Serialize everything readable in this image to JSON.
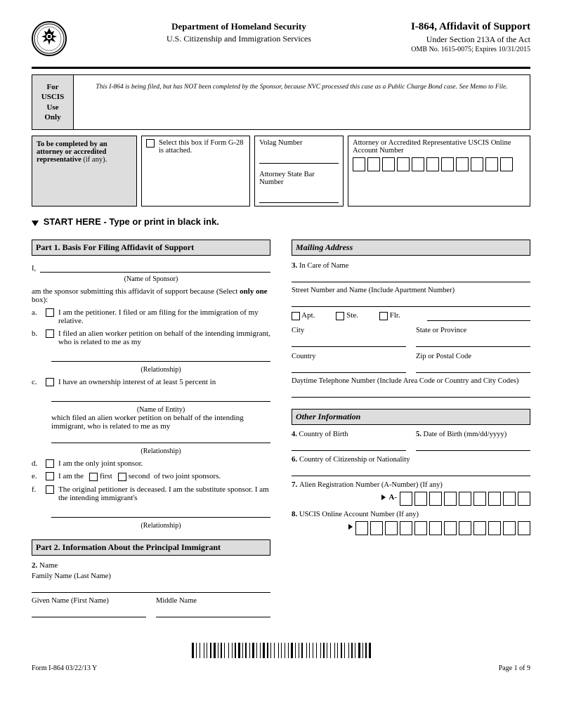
{
  "header": {
    "department": "Department of Homeland Security",
    "agency": "U.S. Citizenship and Immigration Services",
    "form_title": "I-864, Affidavit of Support",
    "form_sub": "Under Section 213A of the Act",
    "omb": "OMB No. 1615-0075; Expires 10/31/2015"
  },
  "uscis_box": {
    "line1": "For",
    "line2": "USCIS",
    "line3": "Use",
    "line4": "Only"
  },
  "official_notice": "This I-864 is being filed, but has NOT been completed by the Sponsor, because NVC processed this case as a Public Charge Bond case. See Memo to File.",
  "attorney": {
    "left_bold": "To be completed by an attorney or accredited representative",
    "left_tail": " (if any).",
    "mid": "Select this box if Form G-28 is attached.",
    "right_lbl1": "Volag Number",
    "right_lbl2": "Attorney State Bar Number",
    "right_lbl3": "Attorney or Accredited Representative USCIS Online Account Number",
    "volag_boxes": 0,
    "online_boxes": 11
  },
  "start_here": "START HERE - Type or print in black ink.",
  "part1": {
    "title": "Part 1.  Basis For Filing Affidavit of Support",
    "lead": "I,",
    "name_hint": "(Name of Sponsor)",
    "prompt": "am the sponsor submitting this affidavit of support because (Select",
    "prompt2": "only one",
    "prompt3": " box):",
    "a": "I am the petitioner. I filed or am filing for the immigration of my relative.",
    "b": "I filed an alien worker petition on behalf of the intending immigrant, who is related to me as my",
    "rel_hint": "(Relationship)",
    "c": "I have an ownership interest of at least 5 percent in",
    "c_hint": "(Name of Entity)",
    "c_cont": "which filed an alien worker petition on behalf of the intending immigrant, who is related to me as my",
    "d": "I am the only joint sponsor.",
    "e": "I am the",
    "e_first": "first",
    "e_second": "second",
    "e_tail": "of two joint sponsors.",
    "f": "The original petitioner is deceased. I am the substitute sponsor. I am the intending immigrant's"
  },
  "part2": {
    "title": "Part 2.  Information About the Principal Immigrant",
    "name_lbl": "Name",
    "family": "Family Name (Last Name)",
    "given": "Given Name (First Name)",
    "middle": "Middle Name"
  },
  "mailing": {
    "title": "Mailing Address",
    "incare": "In Care of Name",
    "street": "Street Number and Name (Include Apartment Number)",
    "city": "City",
    "state": "State or Province",
    "country": "Country",
    "zip": "Zip or Postal Code",
    "phone": "Daytime Telephone Number (Include Area Code or Country and City Codes)",
    "apt": "Apt.",
    "ste": "Ste.",
    "flr": "Flr."
  },
  "other": {
    "title": "Other Information",
    "cob": "Country of Birth",
    "dob": "Date of Birth (mm/dd/yyyy)",
    "coc": "Country of Citizenship or Nationality",
    "alien": "Alien Registration Number (A-Number) (If any)",
    "a_prefix": "A-",
    "a_boxes": 9,
    "uscis_online": "USCIS Online Account Number (If any)",
    "uscis_boxes": 12
  },
  "footer": {
    "left": "Form I-864  03/22/13  Y",
    "right": "Page 1 of 9"
  },
  "colors": {
    "bar_bg": "#dddddd"
  }
}
